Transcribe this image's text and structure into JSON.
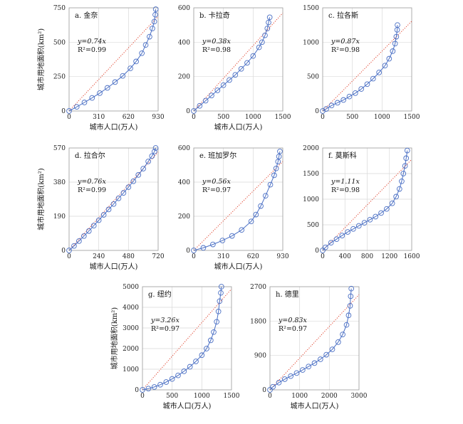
{
  "chart_data": [
    {
      "type": "scatter",
      "panel": "a. 金奈",
      "xlabel": "城市人口(万人)",
      "ylabel": "城市用地面积(km²)",
      "xlim": [
        0,
        930
      ],
      "ylim": [
        0,
        750
      ],
      "xticks": [
        "0",
        "310",
        "620",
        "930"
      ],
      "yticks": [
        "0",
        "250",
        "500",
        "750"
      ],
      "slope": 0.74,
      "equation": "y=0.74x",
      "r2": "R²=0.99",
      "x": [
        0,
        80,
        160,
        240,
        320,
        400,
        480,
        560,
        640,
        700,
        760,
        800,
        840,
        870,
        890,
        900,
        905
      ],
      "y": [
        0,
        30,
        62,
        95,
        130,
        168,
        210,
        255,
        310,
        360,
        420,
        480,
        540,
        600,
        650,
        700,
        740
      ]
    },
    {
      "type": "scatter",
      "panel": "b. 卡拉奇",
      "xlabel": "城市人口(万人)",
      "ylabel": "",
      "xlim": [
        0,
        1500
      ],
      "ylim": [
        0,
        600
      ],
      "xticks": [
        "0",
        "500",
        "1000",
        "1500"
      ],
      "yticks": [
        "0",
        "200",
        "400",
        "600"
      ],
      "slope": 0.38,
      "equation": "y=0.38x",
      "r2": "R²=0.98",
      "x": [
        0,
        100,
        200,
        300,
        400,
        500,
        600,
        700,
        800,
        900,
        1000,
        1100,
        1150,
        1200,
        1240,
        1260,
        1280
      ],
      "y": [
        0,
        30,
        60,
        90,
        120,
        150,
        180,
        210,
        245,
        280,
        320,
        370,
        400,
        440,
        480,
        515,
        545
      ]
    },
    {
      "type": "scatter",
      "panel": "c. 拉各斯",
      "xlabel": "",
      "ylabel": "",
      "xlim": [
        0,
        1500
      ],
      "ylim": [
        0,
        1500
      ],
      "xticks": [
        "0",
        "500",
        "1000",
        "1500"
      ],
      "yticks": [
        "0",
        "500",
        "1000",
        "1500"
      ],
      "slope": 0.87,
      "equation": "y=0.87x",
      "r2": "R²=0.98",
      "x": [
        0,
        60,
        150,
        250,
        350,
        450,
        550,
        650,
        750,
        850,
        950,
        1050,
        1120,
        1180,
        1220,
        1240,
        1255,
        1260
      ],
      "y": [
        0,
        30,
        80,
        120,
        160,
        210,
        260,
        320,
        390,
        470,
        560,
        660,
        760,
        870,
        980,
        1080,
        1180,
        1250
      ]
    },
    {
      "type": "scatter",
      "panel": "d. 拉合尔",
      "xlabel": "城市人口(万人)",
      "ylabel": "城市用地面积(km²)",
      "xlim": [
        0,
        720
      ],
      "ylim": [
        0,
        570
      ],
      "xticks": [
        "0",
        "240",
        "480",
        "720"
      ],
      "yticks": [
        "0",
        "190",
        "380",
        "570"
      ],
      "slope": 0.76,
      "equation": "y=0.76x",
      "r2": "R²=0.99",
      "x": [
        0,
        40,
        80,
        120,
        160,
        200,
        240,
        280,
        320,
        360,
        400,
        440,
        480,
        520,
        560,
        600,
        640,
        670,
        690,
        700
      ],
      "y": [
        0,
        25,
        52,
        80,
        108,
        138,
        168,
        198,
        228,
        258,
        290,
        320,
        352,
        385,
        420,
        455,
        495,
        525,
        550,
        570
      ]
    },
    {
      "type": "scatter",
      "panel": "e. 班加罗尔",
      "xlabel": "城市人口(万人)",
      "ylabel": "",
      "xlim": [
        0,
        930
      ],
      "ylim": [
        0,
        600
      ],
      "xticks": [
        "0",
        "310",
        "620",
        "930"
      ],
      "yticks": [
        "0",
        "200",
        "400",
        "600"
      ],
      "slope": 0.56,
      "equation": "y=0.56x",
      "r2": "R²=0.97",
      "x": [
        0,
        100,
        200,
        300,
        400,
        500,
        600,
        650,
        700,
        750,
        800,
        840,
        860,
        880,
        890,
        900
      ],
      "y": [
        0,
        15,
        35,
        58,
        85,
        120,
        170,
        210,
        260,
        320,
        385,
        440,
        480,
        520,
        550,
        580
      ]
    },
    {
      "type": "scatter",
      "panel": "f. 莫斯科",
      "xlabel": "",
      "ylabel": "",
      "xlim": [
        0,
        1600
      ],
      "ylim": [
        0,
        2000
      ],
      "xticks": [
        "0",
        "400",
        "800",
        "1200",
        "1600"
      ],
      "yticks": [
        "0",
        "500",
        "1000",
        "1500",
        "2000"
      ],
      "slope": 1.11,
      "equation": "y=1.11x",
      "r2": "R²=0.98",
      "x": [
        0,
        50,
        150,
        250,
        350,
        450,
        550,
        650,
        750,
        850,
        950,
        1050,
        1150,
        1250,
        1320,
        1380,
        1420,
        1450,
        1480,
        1500,
        1520
      ],
      "y": [
        0,
        60,
        150,
        220,
        290,
        360,
        420,
        480,
        540,
        600,
        660,
        730,
        810,
        920,
        1050,
        1200,
        1350,
        1500,
        1650,
        1800,
        1950
      ]
    },
    {
      "type": "scatter",
      "panel": "g. 纽约",
      "xlabel": "城市人口(万人)",
      "ylabel": "城市用地面积(km²)",
      "xlim": [
        0,
        1500
      ],
      "ylim": [
        0,
        5000
      ],
      "xticks": [
        "0",
        "500",
        "1000",
        "1500"
      ],
      "yticks": [
        "0",
        "1000",
        "2000",
        "3000",
        "4000",
        "5000"
      ],
      "slope": 3.26,
      "equation": "y=3.26x",
      "r2": "R²=0.97",
      "x": [
        0,
        100,
        200,
        300,
        400,
        500,
        600,
        700,
        800,
        900,
        1000,
        1080,
        1150,
        1200,
        1250,
        1280,
        1300,
        1320,
        1330
      ],
      "y": [
        0,
        60,
        140,
        250,
        380,
        530,
        700,
        900,
        1120,
        1380,
        1680,
        2000,
        2400,
        2800,
        3300,
        3800,
        4300,
        4700,
        5000
      ]
    },
    {
      "type": "scatter",
      "panel": "h. 德里",
      "xlabel": "城市人口(万人)",
      "ylabel": "",
      "xlim": [
        0,
        3000
      ],
      "ylim": [
        0,
        2700
      ],
      "xticks": [
        "0",
        "1000",
        "2000",
        "3000"
      ],
      "yticks": [
        "0",
        "900",
        "1800",
        "2700"
      ],
      "slope": 0.83,
      "equation": "y=0.83x",
      "r2": "R²=0.97",
      "x": [
        0,
        100,
        300,
        500,
        700,
        900,
        1100,
        1300,
        1500,
        1700,
        1900,
        2100,
        2300,
        2450,
        2580,
        2650,
        2700,
        2720,
        2740
      ],
      "y": [
        0,
        80,
        190,
        280,
        360,
        440,
        520,
        610,
        700,
        800,
        920,
        1060,
        1250,
        1450,
        1700,
        1950,
        2200,
        2450,
        2650
      ]
    }
  ]
}
